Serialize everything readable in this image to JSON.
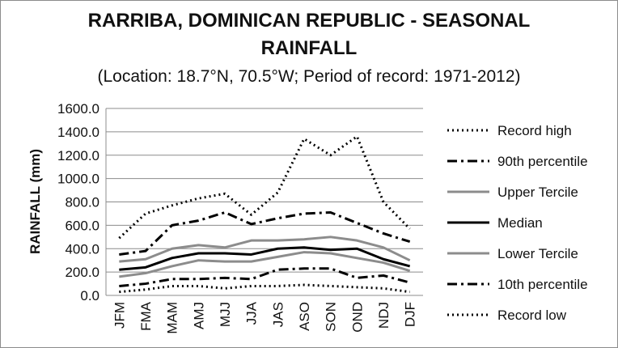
{
  "chart_data": {
    "type": "line",
    "title": "RARRIBA, DOMINICAN REPUBLIC - SEASONAL RAINFALL",
    "title_lines": [
      "RARRIBA, DOMINICAN REPUBLIC - SEASONAL",
      "RAINFALL"
    ],
    "subtitle": "(Location: 18.7°N, 70.5°W; Period of record: 1971-2012)",
    "xlabel": "",
    "ylabel": "RAINFALL (mm)",
    "ylim": [
      0,
      1600
    ],
    "ytick_step": 200,
    "yticks": [
      "0.0",
      "200.0",
      "400.0",
      "600.0",
      "800.0",
      "1000.0",
      "1200.0",
      "1400.0",
      "1600.0"
    ],
    "grid": "horizontal",
    "legend_position": "right",
    "categories": [
      "JFM",
      "FMA",
      "MAM",
      "AMJ",
      "MJJ",
      "JJA",
      "JAS",
      "ASO",
      "SON",
      "OND",
      "NDJ",
      "DJF"
    ],
    "series": [
      {
        "name": "Record high",
        "color": "#000000",
        "style": "dotted",
        "width": 3,
        "values": [
          490,
          700,
          770,
          830,
          870,
          690,
          880,
          1340,
          1200,
          1360,
          800,
          570
        ]
      },
      {
        "name": "90th percentile",
        "color": "#000000",
        "style": "dashdot",
        "width": 3,
        "values": [
          350,
          380,
          600,
          640,
          710,
          610,
          660,
          700,
          710,
          620,
          530,
          460
        ]
      },
      {
        "name": "Upper Tercile",
        "color": "#8c8c8c",
        "style": "solid",
        "width": 3,
        "values": [
          290,
          310,
          400,
          430,
          410,
          470,
          470,
          480,
          500,
          470,
          410,
          300
        ]
      },
      {
        "name": "Median",
        "color": "#000000",
        "style": "solid",
        "width": 3,
        "values": [
          220,
          240,
          320,
          360,
          360,
          350,
          400,
          410,
          390,
          400,
          310,
          250
        ]
      },
      {
        "name": "Lower Tercile",
        "color": "#8c8c8c",
        "style": "solid",
        "width": 3,
        "values": [
          160,
          190,
          250,
          300,
          290,
          290,
          330,
          370,
          360,
          320,
          280,
          210
        ]
      },
      {
        "name": "10th percentile",
        "color": "#000000",
        "style": "dashdot",
        "width": 3,
        "values": [
          80,
          100,
          140,
          140,
          150,
          140,
          220,
          230,
          230,
          150,
          170,
          110
        ]
      },
      {
        "name": "Record low",
        "color": "#000000",
        "style": "dotted",
        "width": 3,
        "values": [
          30,
          50,
          80,
          80,
          60,
          80,
          80,
          90,
          80,
          70,
          60,
          30
        ]
      }
    ]
  }
}
